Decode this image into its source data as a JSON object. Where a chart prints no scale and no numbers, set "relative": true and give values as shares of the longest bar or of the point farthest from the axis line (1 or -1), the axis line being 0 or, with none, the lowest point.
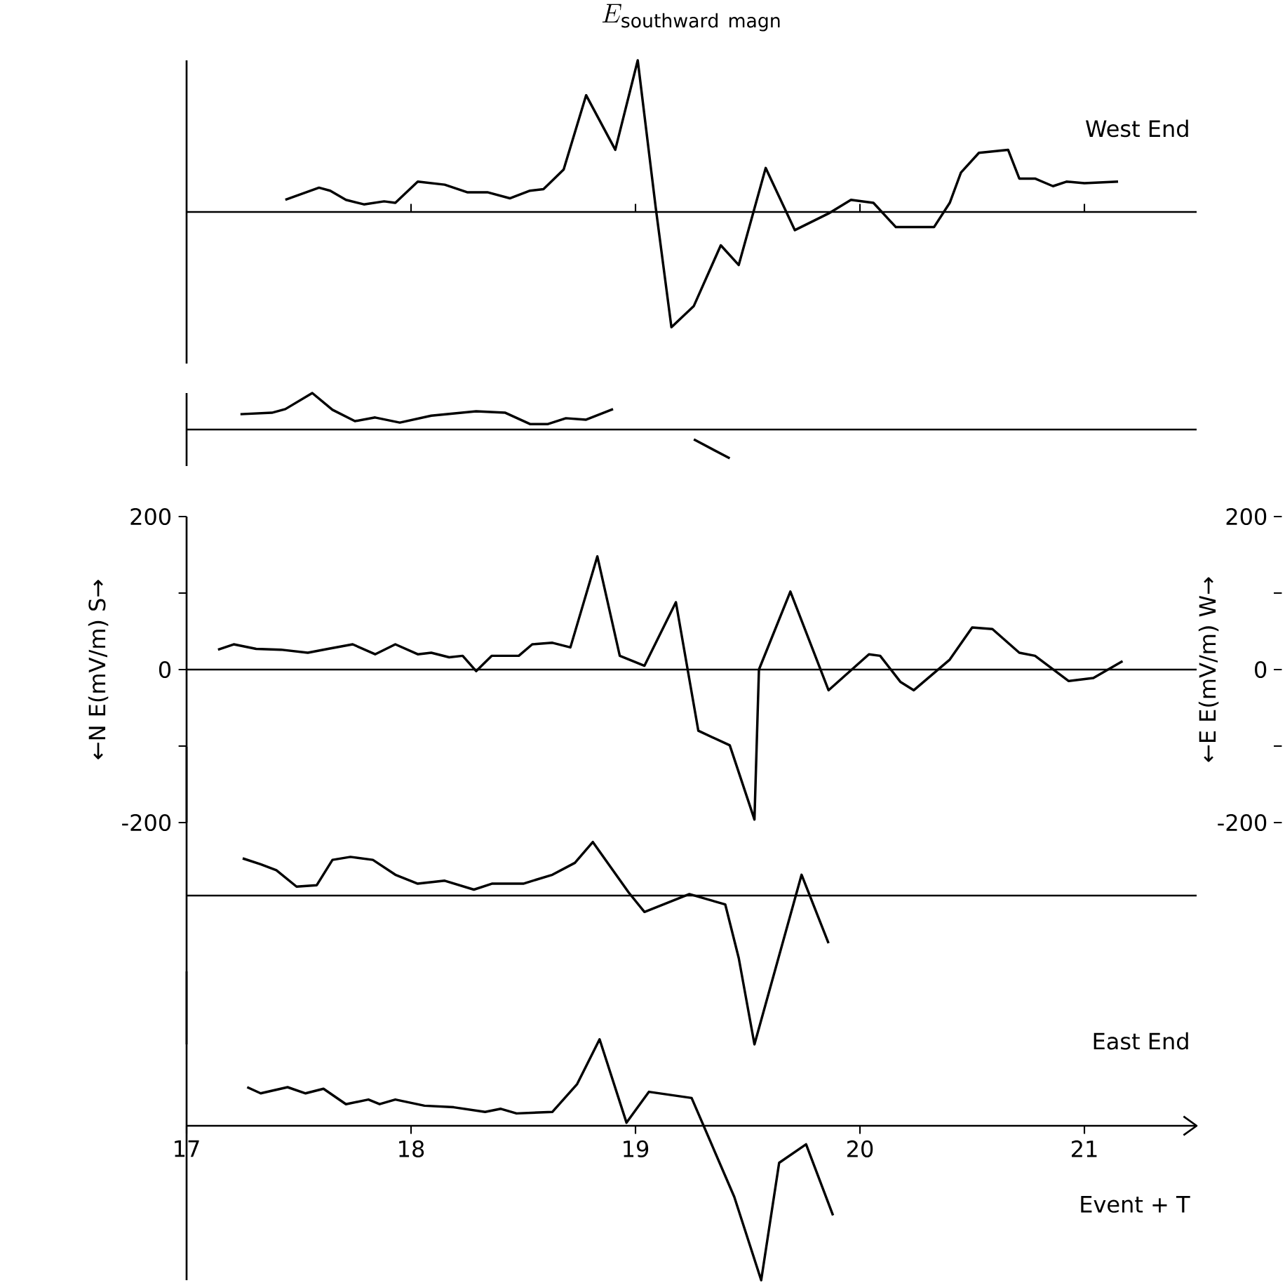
{
  "chart_data": [
    {
      "type": "line",
      "title": "E_{\\mathrm{southward\\ magn}}",
      "annotations": [
        "West End"
      ],
      "xlim": [
        17,
        21.5
      ],
      "relative": true,
      "tick_labels": false,
      "xticks": [
        {
          "value": 18,
          "label": null
        },
        {
          "value": 19,
          "label": null
        },
        {
          "value": 20,
          "label": null
        },
        {
          "value": 21,
          "label": null
        }
      ],
      "x": [
        17.44,
        17.59,
        17.64,
        17.71,
        17.79,
        17.88,
        17.93,
        18.03,
        18.15,
        18.25,
        18.34,
        18.44,
        18.53,
        18.59,
        18.68,
        18.78,
        18.91,
        19.01,
        19.09,
        19.16,
        19.26,
        19.38,
        19.46,
        19.58,
        19.71,
        19.86,
        19.96,
        20.06,
        20.16,
        20.33,
        20.4,
        20.45,
        20.53,
        20.66,
        20.71,
        20.78,
        20.86,
        20.92,
        21.0,
        21.15
      ],
      "series": [
        {
          "color": "#000000",
          "values": [
            0.08,
            0.16,
            0.14,
            0.08,
            0.05,
            0.07,
            0.06,
            0.2,
            0.18,
            0.13,
            0.13,
            0.09,
            0.14,
            0.15,
            0.28,
            0.77,
            0.41,
            1,
            0.03,
            -0.76,
            -0.62,
            -0.22,
            -0.35,
            0.29,
            -0.12,
            -0.01,
            0.08,
            0.06,
            -0.1,
            -0.1,
            0.06,
            0.26,
            0.39,
            0.41,
            0.22,
            0.22,
            0.17,
            0.2,
            0.19,
            0.2
          ]
        }
      ]
    },
    {
      "type": "line",
      "xlim": [
        17,
        21.5
      ],
      "relative": true,
      "tick_labels": false,
      "series": [
        {
          "color": "#000000",
          "x": [
            17.24,
            17.38,
            17.44,
            17.56,
            17.65,
            17.75,
            17.84,
            17.95,
            18.09,
            18.29,
            18.42,
            18.53,
            18.61,
            18.69,
            18.78,
            18.9
          ],
          "values": [
            0.42,
            0.46,
            0.56,
            1,
            0.54,
            0.23,
            0.33,
            0.19,
            0.38,
            0.5,
            0.46,
            0.15,
            0.15,
            0.31,
            0.27,
            0.56
          ]
        },
        {
          "color": "#000000",
          "x": [
            19.26,
            19.42
          ],
          "values": [
            -0.27,
            -0.79
          ]
        }
      ]
    },
    {
      "type": "line",
      "ylabel": "←N  E(mV/m)  S→",
      "y2label": "←E  E(mV/m)  W→",
      "xlim": [
        17,
        21.5
      ],
      "ylim": [
        -200,
        200
      ],
      "tick_labels": "y",
      "yticks": [
        -200,
        {
          "value": -100,
          "label": null
        },
        0,
        {
          "value": 100,
          "label": null
        },
        200
      ],
      "y2lim": [
        -200,
        200
      ],
      "y2ticks": [
        -200,
        {
          "value": -100,
          "label": null
        },
        0,
        {
          "value": 100,
          "label": null
        },
        200
      ],
      "x": [
        17.14,
        17.21,
        17.31,
        17.42,
        17.54,
        17.63,
        17.74,
        17.84,
        17.93,
        18.03,
        18.09,
        18.17,
        18.23,
        18.29,
        18.36,
        18.48,
        18.54,
        18.63,
        18.71,
        18.83,
        18.93,
        19.04,
        19.18,
        19.28,
        19.42,
        19.53,
        19.55,
        19.69,
        19.86,
        20.04,
        20.09,
        20.18,
        20.24,
        20.4,
        20.5,
        20.59,
        20.71,
        20.78,
        20.93,
        21.04,
        21.17
      ],
      "series": [
        {
          "color": "#000000",
          "values": [
            26,
            33,
            27,
            26,
            22,
            27,
            33,
            20,
            33,
            20,
            22,
            16,
            18,
            -2,
            18,
            18,
            33,
            35,
            29,
            148,
            18,
            5,
            88,
            -80,
            -99,
            -196,
            0,
            102,
            -27,
            20,
            18,
            -16,
            -27,
            13,
            55,
            53,
            22,
            18,
            -15,
            -11,
            11
          ]
        }
      ]
    },
    {
      "type": "line",
      "xlim": [
        17,
        21.5
      ],
      "relative": true,
      "tick_labels": false,
      "x": [
        17.25,
        17.33,
        17.4,
        17.49,
        17.58,
        17.65,
        17.73,
        17.83,
        17.93,
        18.03,
        18.15,
        18.28,
        18.36,
        18.5,
        18.63,
        18.73,
        18.81,
        18.97,
        19.04,
        19.24,
        19.4,
        19.46,
        19.53,
        19.74,
        19.86
      ],
      "series": [
        {
          "color": "#000000",
          "values": [
            0.25,
            0.21,
            0.17,
            0.06,
            0.07,
            0.24,
            0.26,
            0.24,
            0.14,
            0.08,
            0.1,
            0.04,
            0.08,
            0.08,
            0.14,
            0.22,
            0.36,
            0.02,
            -0.11,
            0.01,
            -0.06,
            -0.42,
            -1,
            0.14,
            -0.32
          ]
        }
      ]
    },
    {
      "type": "line",
      "xlabel": "Event + T",
      "annotations": [
        "East End"
      ],
      "xlim": [
        17,
        21.5
      ],
      "relative": true,
      "tick_labels": "x",
      "xticks": [
        17,
        18,
        19,
        20,
        21
      ],
      "x": [
        17.27,
        17.33,
        17.45,
        17.53,
        17.61,
        17.71,
        17.81,
        17.86,
        17.93,
        18.06,
        18.19,
        18.33,
        18.4,
        18.47,
        18.63,
        18.74,
        18.84,
        18.96,
        19.06,
        19.25,
        19.44,
        19.56,
        19.64,
        19.76,
        19.88
      ],
      "series": [
        {
          "color": "#000000",
          "values": [
            0.25,
            0.21,
            0.25,
            0.21,
            0.24,
            0.14,
            0.17,
            0.14,
            0.17,
            0.13,
            0.12,
            0.09,
            0.11,
            0.08,
            0.09,
            0.27,
            0.56,
            0.02,
            0.22,
            0.18,
            -0.46,
            -1,
            -0.24,
            -0.12,
            -0.58
          ]
        }
      ]
    }
  ]
}
